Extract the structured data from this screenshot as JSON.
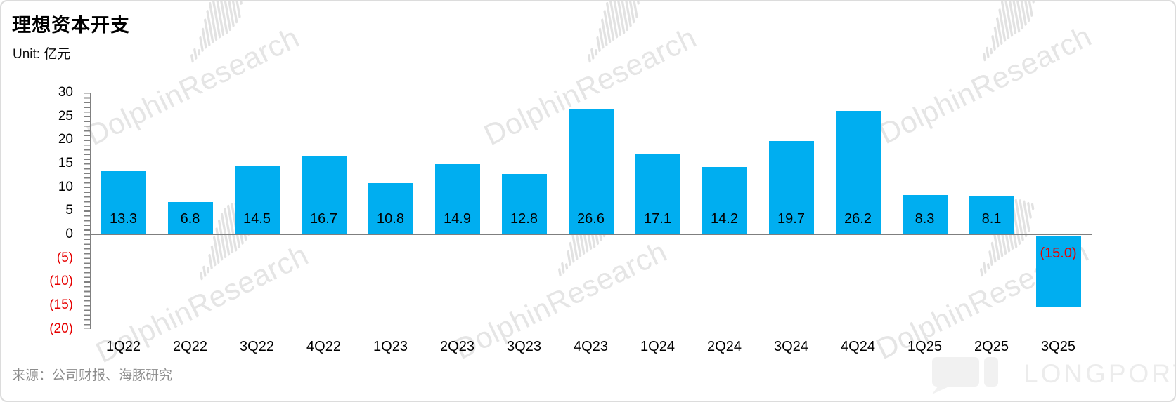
{
  "header": {
    "title": "理想资本开支",
    "unit_label": "Unit: 亿元"
  },
  "chart_data": {
    "type": "bar",
    "title": "理想资本开支",
    "unit": "亿元",
    "categories": [
      "1Q22",
      "2Q22",
      "3Q22",
      "4Q22",
      "1Q23",
      "2Q23",
      "3Q23",
      "4Q23",
      "1Q24",
      "2Q24",
      "3Q24",
      "4Q24",
      "1Q25",
      "2Q25",
      "3Q25"
    ],
    "values": [
      13.3,
      6.8,
      14.5,
      16.7,
      10.8,
      14.9,
      12.8,
      26.6,
      17.1,
      14.2,
      19.7,
      26.2,
      8.3,
      8.1,
      -15.0
    ],
    "value_labels": [
      "13.3",
      "6.8",
      "14.5",
      "16.7",
      "10.8",
      "14.9",
      "12.8",
      "26.6",
      "17.1",
      "14.2",
      "19.7",
      "26.2",
      "8.3",
      "8.1",
      "(15.0)"
    ],
    "ylim": [
      -20,
      30
    ],
    "y_tick_step": 5,
    "y_ticks": [
      {
        "value": 30,
        "label": "30"
      },
      {
        "value": 25,
        "label": "25"
      },
      {
        "value": 20,
        "label": "20"
      },
      {
        "value": 15,
        "label": "15"
      },
      {
        "value": 10,
        "label": "10"
      },
      {
        "value": 5,
        "label": "5"
      },
      {
        "value": 0,
        "label": "0"
      },
      {
        "value": -5,
        "label": "(5)"
      },
      {
        "value": -10,
        "label": "(10)"
      },
      {
        "value": -15,
        "label": "(15)"
      },
      {
        "value": -20,
        "label": "(20)"
      }
    ],
    "xlabel": "",
    "ylabel": "",
    "grid": false,
    "legend_position": "none",
    "colors": {
      "bar": "#00AEF0",
      "positive_label": "#000000",
      "negative_label": "#E60000",
      "axis": "#808080"
    }
  },
  "footer": {
    "source": "来源：公司财报、海豚研究"
  },
  "watermark": {
    "text": "DolphinResearch",
    "brand": "LONGPORT"
  }
}
